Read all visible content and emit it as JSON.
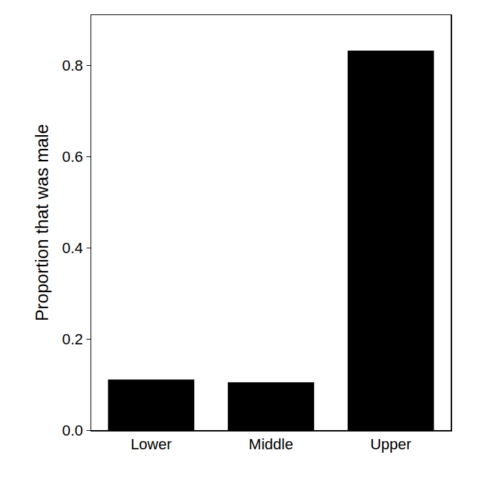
{
  "chart_data": {
    "type": "bar",
    "y_label": "Proportion that was male",
    "categories": [
      "Lower",
      "Middle",
      "Upper"
    ],
    "values": [
      0.111,
      0.105,
      0.832
    ],
    "color": "#000000",
    "ylim": [
      0,
      0.91
    ],
    "yticks": [
      {
        "value": 0,
        "label": "0.0"
      },
      0.2,
      0.4,
      0.6,
      0.8
    ],
    "grid": false
  }
}
